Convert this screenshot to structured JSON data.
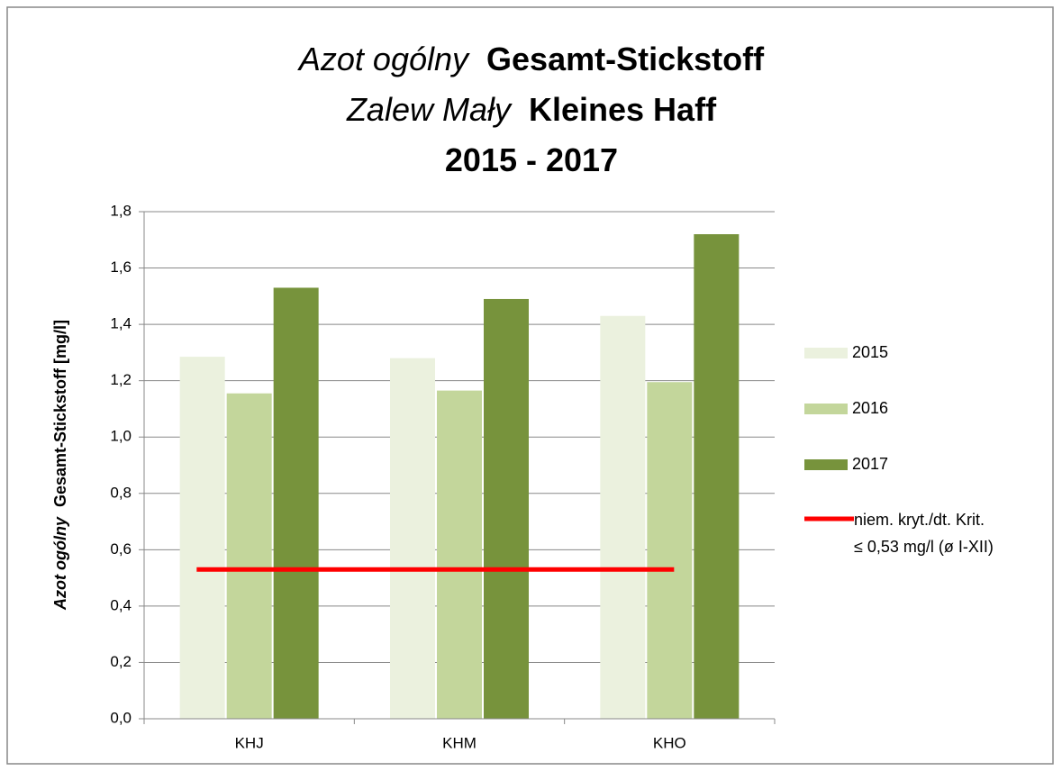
{
  "chart_data": {
    "type": "bar",
    "title_lines": [
      {
        "italic": "Azot ogólny",
        "bold": "Gesamt-Stickstoff"
      },
      {
        "italic": "Zalew Mały",
        "bold": "Kleines Haff"
      },
      {
        "bold": "2015 - 2017"
      }
    ],
    "ylabel": {
      "italic": "Azot ogólny",
      "bold": "Gesamt-Stickstoff [mg/l]"
    },
    "categories": [
      "KHJ",
      "KHM",
      "KHO"
    ],
    "series": [
      {
        "name": "2015",
        "color": "#ebf1de",
        "values": [
          1.285,
          1.28,
          1.43
        ]
      },
      {
        "name": "2016",
        "color": "#c3d69b",
        "values": [
          1.155,
          1.165,
          1.195
        ]
      },
      {
        "name": "2017",
        "color": "#77933c",
        "values": [
          1.53,
          1.49,
          1.72
        ]
      }
    ],
    "threshold": {
      "name": [
        "niem. kryt./dt. Krit.",
        "≤ 0,53 mg/l (ø I-XII)"
      ],
      "value": 0.53,
      "color": "#ff0000"
    },
    "ylim": [
      0,
      1.8
    ],
    "yticks": [
      {
        "value": 0,
        "label": "0,0"
      },
      {
        "value": 0.2,
        "label": "0,2"
      },
      {
        "value": 0.4,
        "label": "0,4"
      },
      {
        "value": 0.6,
        "label": "0,6"
      },
      {
        "value": 0.8,
        "label": "0,8"
      },
      {
        "value": 1.0,
        "label": "1,0"
      },
      {
        "value": 1.2,
        "label": "1,2"
      },
      {
        "value": 1.4,
        "label": "1,4"
      },
      {
        "value": 1.6,
        "label": "1,6"
      },
      {
        "value": 1.8,
        "label": "1,8"
      }
    ],
    "grid": true,
    "legend": "right"
  }
}
